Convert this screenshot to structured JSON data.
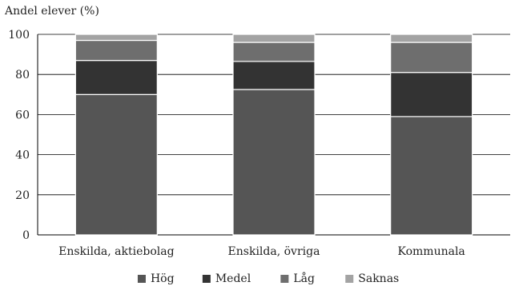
{
  "chart_data": {
    "type": "bar",
    "stacked": true,
    "title": "",
    "ylabel": "Andel elever (%)",
    "xlabel": "",
    "ylim": [
      0,
      100
    ],
    "yticks": [
      0,
      20,
      40,
      60,
      80,
      100
    ],
    "grid": true,
    "legend_position": "bottom",
    "categories": [
      "Enskilda, aktiebolag",
      "Enskilda, övriga",
      "Kommunala"
    ],
    "series": [
      {
        "name": "Hög",
        "color": "#555555",
        "values": [
          70,
          72.5,
          59
        ]
      },
      {
        "name": "Medel",
        "color": "#333333",
        "values": [
          17,
          14,
          22
        ]
      },
      {
        "name": "Låg",
        "color": "#6e6e6e",
        "values": [
          10,
          9.5,
          15
        ]
      },
      {
        "name": "Saknas",
        "color": "#a3a3a3",
        "values": [
          3,
          4,
          4
        ]
      }
    ]
  }
}
